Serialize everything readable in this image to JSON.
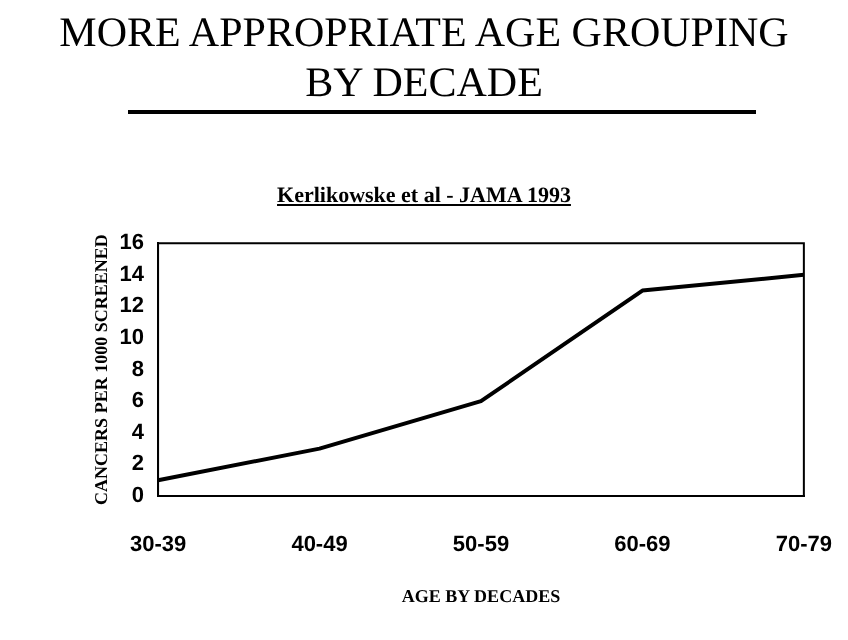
{
  "chart_data": {
    "type": "line",
    "title": "MORE APPROPRIATE AGE GROUPING BY DECADE",
    "subtitle": "Kerlikowske et al - JAMA 1993",
    "xlabel": "AGE BY DECADES",
    "ylabel": "CANCERS PER 1000 SCREENED",
    "categories": [
      "30-39",
      "40-49",
      "50-59",
      "60-69",
      "70-79"
    ],
    "series": [
      {
        "color": "#000000",
        "values": [
          1,
          3,
          6,
          13,
          14
        ]
      }
    ],
    "ylim": [
      0,
      16
    ],
    "yticks": [
      0,
      2,
      4,
      6,
      8,
      10,
      12,
      14,
      16
    ],
    "grid": false,
    "legend": false,
    "marker": "none",
    "line_style": "solid"
  }
}
